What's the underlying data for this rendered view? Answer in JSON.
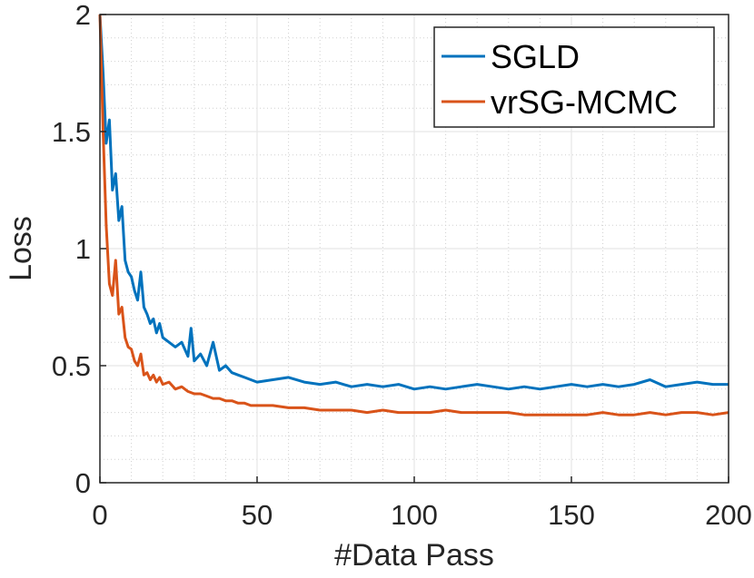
{
  "chart_data": {
    "type": "line",
    "title": "",
    "xlabel": "#Data Pass",
    "ylabel": "Loss",
    "xlim": [
      0,
      200
    ],
    "ylim": [
      0,
      2
    ],
    "xticks": [
      0,
      50,
      100,
      150,
      200
    ],
    "yticks": [
      0,
      0.5,
      1,
      1.5,
      2
    ],
    "xtick_labels": [
      "0",
      "50",
      "100",
      "150",
      "200"
    ],
    "ytick_labels": [
      "0",
      "0.5",
      "1",
      "1.5",
      "2"
    ],
    "grid": true,
    "minor_grid": true,
    "legend_position": "top-right",
    "colors": {
      "SGLD": "#0072BD",
      "vrSG-MCMC": "#D95319",
      "axis": "#262626",
      "grid": "#e6e6e6"
    },
    "series": [
      {
        "name": "SGLD",
        "x": [
          0,
          1,
          2,
          3,
          4,
          5,
          6,
          7,
          8,
          9,
          10,
          11,
          12,
          13,
          14,
          15,
          16,
          17,
          18,
          19,
          20,
          22,
          24,
          26,
          28,
          29,
          30,
          32,
          34,
          36,
          38,
          40,
          42,
          44,
          46,
          48,
          50,
          55,
          60,
          65,
          70,
          75,
          80,
          85,
          90,
          95,
          100,
          105,
          110,
          115,
          120,
          125,
          130,
          135,
          140,
          145,
          150,
          155,
          160,
          165,
          170,
          175,
          180,
          185,
          190,
          195,
          200
        ],
        "values": [
          2.0,
          1.75,
          1.45,
          1.55,
          1.25,
          1.32,
          1.12,
          1.18,
          0.95,
          0.9,
          0.88,
          0.82,
          0.78,
          0.9,
          0.75,
          0.72,
          0.68,
          0.7,
          0.64,
          0.68,
          0.62,
          0.6,
          0.58,
          0.6,
          0.54,
          0.66,
          0.52,
          0.55,
          0.5,
          0.6,
          0.48,
          0.5,
          0.47,
          0.46,
          0.45,
          0.44,
          0.43,
          0.44,
          0.45,
          0.43,
          0.42,
          0.43,
          0.41,
          0.42,
          0.41,
          0.42,
          0.4,
          0.41,
          0.4,
          0.41,
          0.42,
          0.41,
          0.4,
          0.41,
          0.4,
          0.41,
          0.42,
          0.41,
          0.42,
          0.41,
          0.42,
          0.44,
          0.41,
          0.42,
          0.43,
          0.42,
          0.42
        ]
      },
      {
        "name": "vrSG-MCMC",
        "x": [
          0,
          1,
          2,
          3,
          4,
          5,
          6,
          7,
          8,
          9,
          10,
          11,
          12,
          13,
          14,
          15,
          16,
          17,
          18,
          19,
          20,
          22,
          24,
          26,
          28,
          30,
          32,
          34,
          36,
          38,
          40,
          42,
          44,
          46,
          48,
          50,
          55,
          60,
          65,
          70,
          75,
          80,
          85,
          90,
          95,
          100,
          105,
          110,
          115,
          120,
          125,
          130,
          135,
          140,
          145,
          150,
          155,
          160,
          165,
          170,
          175,
          180,
          185,
          190,
          195,
          200
        ],
        "values": [
          2.0,
          1.5,
          1.1,
          0.85,
          0.8,
          0.95,
          0.72,
          0.75,
          0.62,
          0.58,
          0.57,
          0.52,
          0.5,
          0.55,
          0.46,
          0.47,
          0.44,
          0.46,
          0.43,
          0.45,
          0.42,
          0.43,
          0.4,
          0.41,
          0.39,
          0.38,
          0.38,
          0.37,
          0.36,
          0.36,
          0.35,
          0.35,
          0.34,
          0.34,
          0.33,
          0.33,
          0.33,
          0.32,
          0.32,
          0.31,
          0.31,
          0.31,
          0.3,
          0.31,
          0.3,
          0.3,
          0.3,
          0.31,
          0.3,
          0.3,
          0.3,
          0.3,
          0.29,
          0.29,
          0.29,
          0.29,
          0.29,
          0.3,
          0.29,
          0.29,
          0.3,
          0.29,
          0.3,
          0.3,
          0.29,
          0.3
        ]
      }
    ]
  }
}
